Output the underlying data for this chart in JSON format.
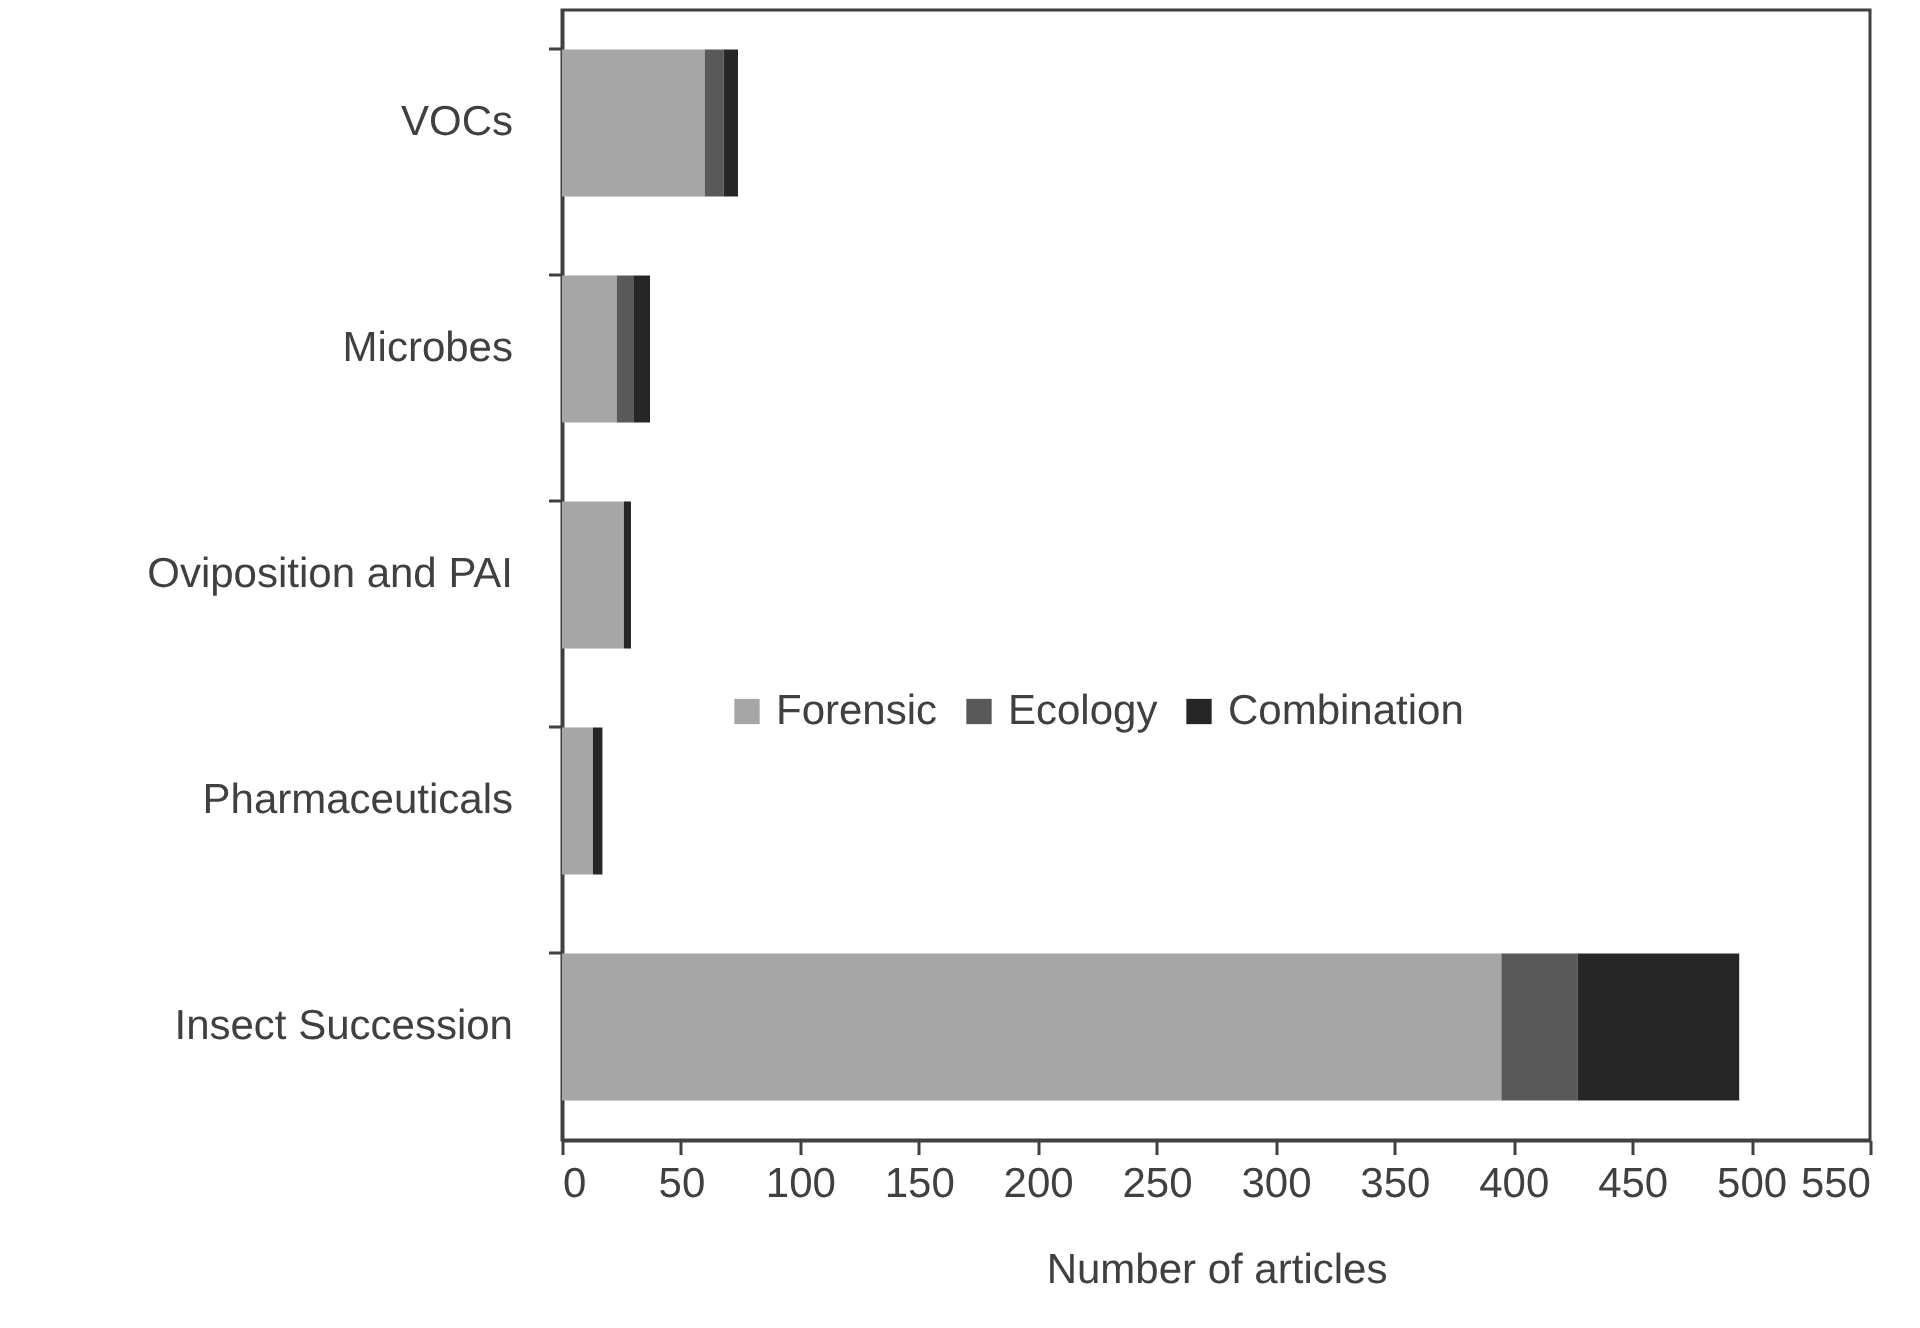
{
  "chart_data": {
    "type": "bar",
    "orientation": "horizontal",
    "stacked": true,
    "xlabel": "Number of articles",
    "categories": [
      "VOCs",
      "Microbes",
      "Oviposition and PAI",
      "Pharmaceuticals",
      "Insect Succession"
    ],
    "series": [
      {
        "name": "Forensic",
        "color": "#a6a6a6",
        "values": [
          60,
          23,
          26,
          13,
          395
        ]
      },
      {
        "name": "Ecology",
        "color": "#595959",
        "values": [
          8,
          7,
          0,
          0,
          32
        ]
      },
      {
        "name": "Combination",
        "color": "#262626",
        "values": [
          6,
          7,
          3,
          4,
          68
        ]
      }
    ],
    "xlim": [
      0,
      550
    ],
    "xticks": [
      0,
      50,
      100,
      150,
      200,
      250,
      300,
      350,
      400,
      450,
      500,
      550
    ],
    "grid": false,
    "legend": "bottom left"
  }
}
